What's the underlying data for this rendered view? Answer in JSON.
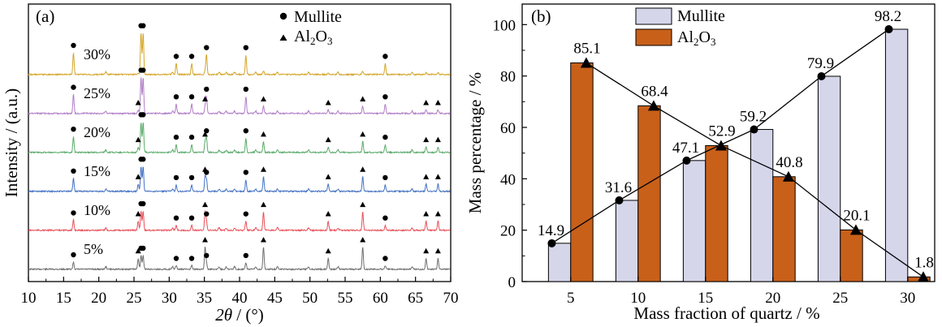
{
  "chart_data": [
    {
      "type": "line",
      "panel_label": "(a)",
      "xlabel_symbol": "2θ",
      "xlabel_unit": " / (°)",
      "ylabel": "Intensity / (a.u.)",
      "xlim": [
        10,
        70
      ],
      "x_ticks": [
        10,
        15,
        20,
        25,
        30,
        35,
        40,
        45,
        50,
        55,
        60,
        65,
        70
      ],
      "legend": {
        "mullite": "Mullite",
        "alumina_main": "Al",
        "alumina_sub1": "2",
        "alumina_mid": "O",
        "alumina_sub2": "3"
      },
      "mullite_peaks": [
        16.4,
        26.0,
        26.3,
        31.0,
        33.2,
        35.3,
        40.9,
        60.7
      ],
      "alumina_peaks": [
        25.6,
        35.1,
        43.4,
        52.6,
        57.5,
        66.5,
        68.2
      ],
      "series": [
        {
          "name": "5%",
          "color": "#6e6e6e",
          "level": 0.0
        },
        {
          "name": "10%",
          "color": "#e8505a",
          "level": 0.2
        },
        {
          "name": "15%",
          "color": "#4472c4",
          "level": 0.4
        },
        {
          "name": "20%",
          "color": "#5aaa6a",
          "level": 0.6
        },
        {
          "name": "25%",
          "color": "#b07cc6",
          "level": 0.8
        },
        {
          "name": "30%",
          "color": "#d4a52a",
          "level": 1.0
        }
      ]
    },
    {
      "type": "bar",
      "panel_label": "(b)",
      "xlabel": "Mass fraction of quartz / %",
      "ylabel": "Mass percentage / %",
      "categories": [
        "5",
        "10",
        "15",
        "20",
        "25",
        "30"
      ],
      "ylim": [
        0,
        108
      ],
      "y_ticks": [
        0,
        20,
        40,
        60,
        80,
        100
      ],
      "series": [
        {
          "name": "Mullite",
          "color": "#d5d6ea",
          "values": [
            14.9,
            31.6,
            47.1,
            59.2,
            79.9,
            98.2
          ],
          "value_labels": [
            "14.9",
            "31.6",
            "47.1",
            "59.2",
            "79.9",
            "98.2"
          ]
        },
        {
          "name": "Al2O3",
          "color": "#c8601a",
          "values": [
            85.1,
            68.4,
            52.9,
            40.8,
            20.1,
            1.8
          ],
          "value_labels": [
            "85.1",
            "68.4",
            "52.9",
            "40.8",
            "20.1",
            "1.8"
          ]
        }
      ],
      "legend": {
        "mullite": "Mullite",
        "alumina_main": "Al",
        "alumina_sub1": "2",
        "alumina_mid": "O",
        "alumina_sub2": "3"
      }
    }
  ]
}
